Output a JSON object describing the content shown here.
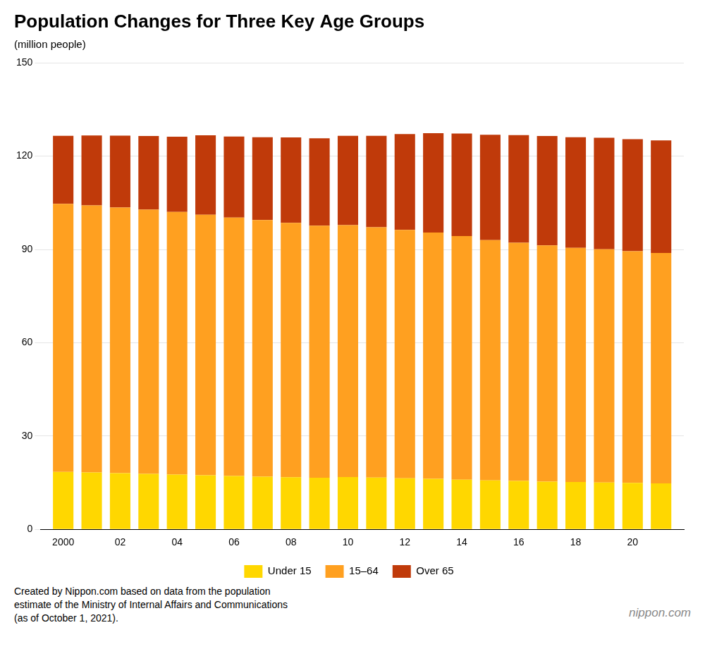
{
  "chart_data": {
    "type": "bar",
    "stacked": true,
    "title": "Population Changes for Three Key Age Groups",
    "subtitle": "(million people)",
    "x": [
      2000,
      2001,
      2002,
      2003,
      2004,
      2005,
      2006,
      2007,
      2008,
      2009,
      2010,
      2011,
      2012,
      2013,
      2014,
      2015,
      2016,
      2017,
      2018,
      2019,
      2020,
      2021
    ],
    "series": [
      {
        "name": "Under 15",
        "color": "#FFD700",
        "values": [
          18.47,
          18.26,
          18.04,
          17.86,
          17.63,
          17.4,
          17.15,
          16.95,
          16.77,
          16.59,
          16.8,
          16.62,
          16.43,
          16.22,
          15.97,
          15.75,
          15.57,
          15.36,
          15.25,
          15.08,
          14.93,
          14.78
        ]
      },
      {
        "name": "15–64",
        "color": "#FFA020",
        "values": [
          86.22,
          85.9,
          85.43,
          84.97,
          84.42,
          83.75,
          83.09,
          82.52,
          81.79,
          81.03,
          81.03,
          80.52,
          79.85,
          79.24,
          78.32,
          77.28,
          76.6,
          75.96,
          75.27,
          74.95,
          74.5,
          74.07
        ]
      },
      {
        "name": "Over 65",
        "color": "#C03A0A",
        "values": [
          21.87,
          22.51,
          23.13,
          23.67,
          24.18,
          25.55,
          26.09,
          26.59,
          27.44,
          28.14,
          28.69,
          29.39,
          30.8,
          31.9,
          33.0,
          33.87,
          34.59,
          35.14,
          35.58,
          35.88,
          36.03,
          36.21
        ]
      }
    ],
    "xlim": [
      1999.2,
      2021.8
    ],
    "xticks": [
      2000,
      {
        "value": 2002,
        "label": "02"
      },
      {
        "value": 2004,
        "label": "04"
      },
      {
        "value": 2006,
        "label": "06"
      },
      {
        "value": 2008,
        "label": "08"
      },
      {
        "value": 2010,
        "label": "10"
      },
      {
        "value": 2012,
        "label": "12"
      },
      {
        "value": 2014,
        "label": "14"
      },
      {
        "value": 2016,
        "label": "16"
      },
      {
        "value": 2018,
        "label": "18"
      },
      {
        "value": 2020,
        "label": "20"
      }
    ],
    "ylim": [
      0,
      150
    ],
    "yticks": [
      0,
      30,
      60,
      90,
      120,
      150
    ],
    "grid": true,
    "legend": "bottom",
    "annotations": [
      "Created by Nippon.com based on data from the population\nestimate of the Ministry of Internal Affairs and Communications\n(as of October 1, 2021).",
      "nippon.com"
    ]
  }
}
